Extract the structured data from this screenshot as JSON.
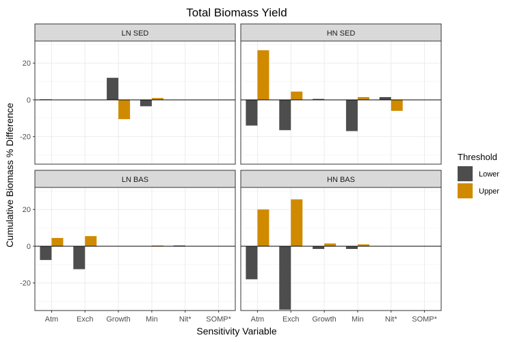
{
  "chart_data": {
    "type": "bar",
    "title": "Total Biomass Yield",
    "xlabel": "Sensitivity Variable",
    "ylabel": "Cumulative Biomass % Difference",
    "categories": [
      "Atm",
      "Exch",
      "Growth",
      "Min",
      "Nit*",
      "SOMP*"
    ],
    "ylim": [
      -35,
      32
    ],
    "yticks": [
      -20,
      0,
      20
    ],
    "grid": true,
    "legend": {
      "title": "Threshold",
      "position": "right",
      "entries": [
        {
          "name": "Lower",
          "color": "#4d4d4d"
        },
        {
          "name": "Upper",
          "color": "#d08a00"
        }
      ]
    },
    "facets": [
      {
        "label": "LN SED",
        "series": [
          {
            "name": "Lower",
            "values": [
              0.3,
              0,
              12,
              -3.5,
              0,
              0
            ]
          },
          {
            "name": "Upper",
            "values": [
              0,
              0,
              -10.5,
              1,
              0,
              0
            ]
          }
        ]
      },
      {
        "label": "HN SED",
        "series": [
          {
            "name": "Lower",
            "values": [
              -14,
              -16.5,
              0.5,
              -17,
              1.5,
              0
            ]
          },
          {
            "name": "Upper",
            "values": [
              27,
              4.5,
              0,
              1.5,
              -6,
              0
            ]
          }
        ]
      },
      {
        "label": "LN BAS",
        "series": [
          {
            "name": "Lower",
            "values": [
              -7.5,
              -12.5,
              0,
              0,
              0.4,
              0
            ]
          },
          {
            "name": "Upper",
            "values": [
              4.5,
              5.5,
              0,
              0.4,
              0,
              0
            ]
          }
        ]
      },
      {
        "label": "HN BAS",
        "series": [
          {
            "name": "Lower",
            "values": [
              -18,
              -34.5,
              -1.5,
              -1.5,
              0,
              0
            ]
          },
          {
            "name": "Upper",
            "values": [
              20,
              25.5,
              1.5,
              1,
              0,
              0
            ]
          }
        ]
      }
    ]
  }
}
